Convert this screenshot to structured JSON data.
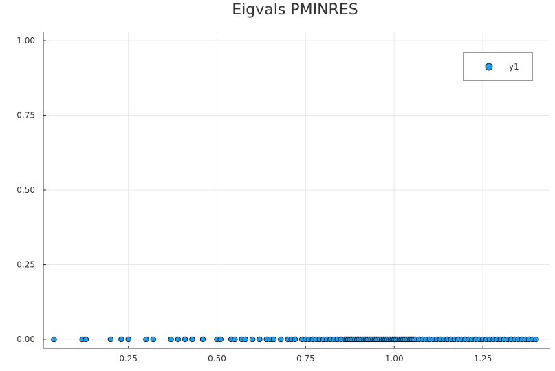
{
  "chart_data": {
    "type": "scatter",
    "title": "Eigvals PMINRES",
    "xlabel": "",
    "ylabel": "",
    "xlim": [
      0.01,
      1.44
    ],
    "ylim": [
      -0.03,
      1.03
    ],
    "xticks": [
      0.25,
      0.5,
      0.75,
      1.0,
      1.25
    ],
    "xtick_labels": [
      "0.25",
      "0.50",
      "0.75",
      "1.00",
      "1.25"
    ],
    "yticks": [
      0.0,
      0.25,
      0.5,
      0.75,
      1.0
    ],
    "ytick_labels": [
      "0.00",
      "0.25",
      "0.50",
      "0.75",
      "1.00"
    ],
    "grid": true,
    "legend": {
      "position": "top-right",
      "entries": [
        "y1"
      ]
    },
    "colors": {
      "marker": "#1f9ff0",
      "marker_edge": "#000000",
      "grid": "#e8e8e8",
      "axis": "#333333"
    },
    "series": [
      {
        "name": "y1",
        "x": [
          0.04,
          0.12,
          0.13,
          0.2,
          0.23,
          0.25,
          0.3,
          0.32,
          0.37,
          0.39,
          0.41,
          0.43,
          0.46,
          0.5,
          0.51,
          0.54,
          0.55,
          0.57,
          0.58,
          0.6,
          0.62,
          0.64,
          0.65,
          0.66,
          0.68,
          0.7,
          0.71,
          0.72,
          0.74,
          0.75,
          0.76,
          0.77,
          0.78,
          0.79,
          0.8,
          0.81,
          0.82,
          0.83,
          0.84,
          0.85,
          0.86,
          0.865,
          0.87,
          0.875,
          0.88,
          0.885,
          0.89,
          0.895,
          0.9,
          0.905,
          0.91,
          0.915,
          0.92,
          0.925,
          0.93,
          0.935,
          0.94,
          0.945,
          0.95,
          0.955,
          0.96,
          0.965,
          0.97,
          0.975,
          0.98,
          0.985,
          0.99,
          0.995,
          1.0,
          1.005,
          1.01,
          1.015,
          1.02,
          1.025,
          1.03,
          1.035,
          1.04,
          1.045,
          1.05,
          1.055,
          1.06,
          1.07,
          1.08,
          1.09,
          1.1,
          1.11,
          1.12,
          1.13,
          1.14,
          1.15,
          1.16,
          1.17,
          1.18,
          1.19,
          1.2,
          1.21,
          1.22,
          1.23,
          1.24,
          1.25,
          1.26,
          1.27,
          1.28,
          1.29,
          1.3,
          1.31,
          1.32,
          1.33,
          1.34,
          1.35,
          1.36,
          1.37,
          1.38,
          1.39,
          1.4
        ],
        "y": [
          0,
          0,
          0,
          0,
          0,
          0,
          0,
          0,
          0,
          0,
          0,
          0,
          0,
          0,
          0,
          0,
          0,
          0,
          0,
          0,
          0,
          0,
          0,
          0,
          0,
          0,
          0,
          0,
          0,
          0,
          0,
          0,
          0,
          0,
          0,
          0,
          0,
          0,
          0,
          0,
          0,
          0,
          0,
          0,
          0,
          0,
          0,
          0,
          0,
          0,
          0,
          0,
          0,
          0,
          0,
          0,
          0,
          0,
          0,
          0,
          0,
          0,
          0,
          0,
          0,
          0,
          0,
          0,
          0,
          0,
          0,
          0,
          0,
          0,
          0,
          0,
          0,
          0,
          0,
          0,
          0,
          0,
          0,
          0,
          0,
          0,
          0,
          0,
          0,
          0,
          0,
          0,
          0,
          0,
          0,
          0,
          0,
          0,
          0,
          0,
          0,
          0,
          0,
          0,
          0,
          0,
          0,
          0,
          0,
          0,
          0,
          0,
          0,
          0,
          0
        ]
      }
    ]
  }
}
